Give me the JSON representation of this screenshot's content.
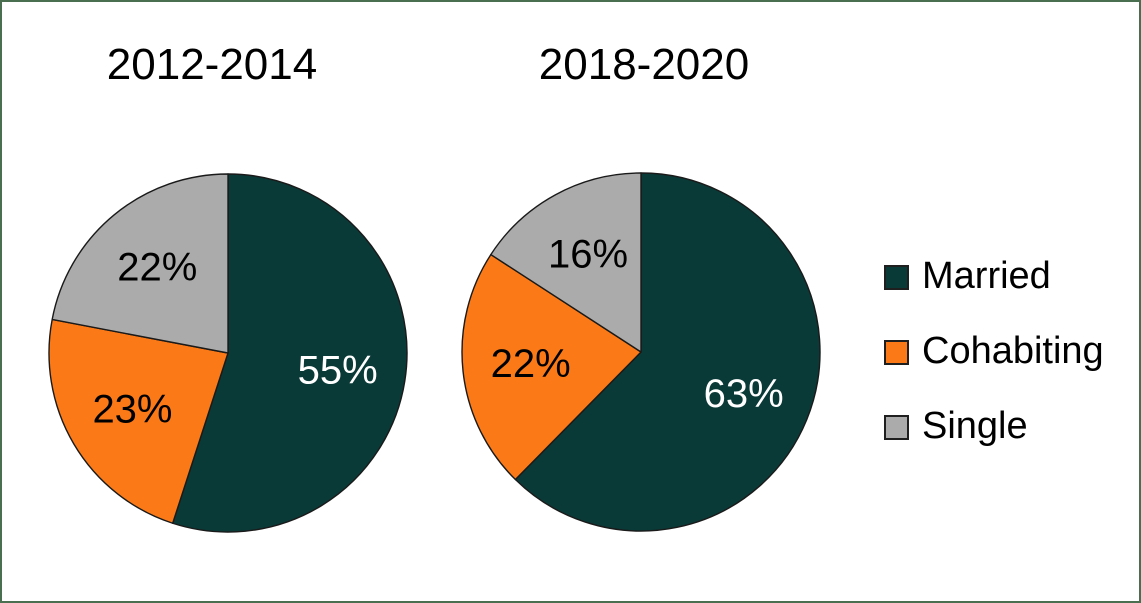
{
  "figure": {
    "background_color": "#ffffff",
    "frame_color": "#4a6f50"
  },
  "chart_data": [
    {
      "type": "pie",
      "title": "2012-2014",
      "unit": "%",
      "start_angle": "12-o'clock",
      "direction": "clockwise",
      "slices": [
        {
          "label": "Married",
          "value": 55,
          "text": "55%",
          "color": "#093a37",
          "text_color": "#ffffff"
        },
        {
          "label": "Cohabiting",
          "value": 23,
          "text": "23%",
          "color": "#fb7a17",
          "text_color": "#000000"
        },
        {
          "label": "Single",
          "value": 22,
          "text": "22%",
          "color": "#ababab",
          "text_color": "#000000"
        }
      ]
    },
    {
      "type": "pie",
      "title": "2018-2020",
      "unit": "%",
      "start_angle": "12-o'clock",
      "direction": "clockwise",
      "slices": [
        {
          "label": "Married",
          "value": 63,
          "text": "63%",
          "color": "#093a37",
          "text_color": "#ffffff"
        },
        {
          "label": "Cohabiting",
          "value": 22,
          "text": "22%",
          "color": "#fb7a17",
          "text_color": "#000000"
        },
        {
          "label": "Single",
          "value": 16,
          "text": "16%",
          "color": "#ababab",
          "text_color": "#000000"
        }
      ]
    }
  ],
  "legend": {
    "position": "right",
    "items": [
      {
        "label": "Married",
        "color": "#093a37"
      },
      {
        "label": "Cohabiting",
        "color": "#fb7a17"
      },
      {
        "label": "Single",
        "color": "#ababab"
      }
    ]
  }
}
